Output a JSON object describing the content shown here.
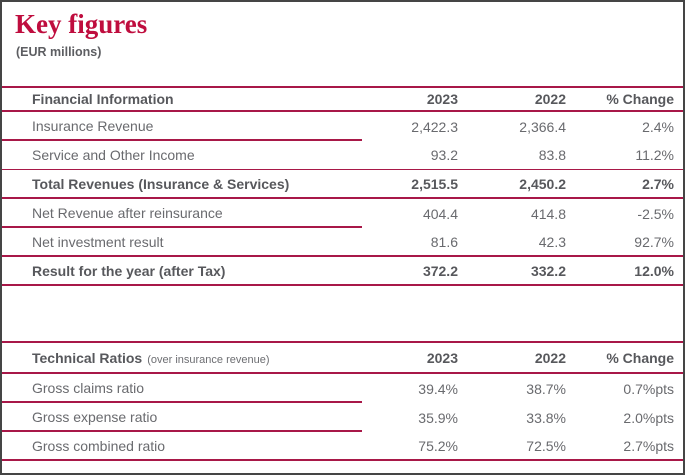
{
  "page": {
    "title": "Key figures",
    "subtitle": "(EUR millions)"
  },
  "colors": {
    "title_red": "#bf0d3e",
    "table_line_crimson": "#a81848",
    "text_gray": "#696a6e",
    "text_bold_gray": "#57585c"
  },
  "tables": [
    {
      "name": "Financial Information",
      "header": {
        "label": "Financial Information",
        "note": "",
        "col_2023": "2023",
        "col_2022": "2022",
        "col_change": "% Change"
      },
      "rows": [
        {
          "label": "Insurance Revenue",
          "v2023": "2,422.3",
          "v2022": "2,366.4",
          "change": "2.4%"
        },
        {
          "label": "Service and Other Income",
          "v2023": "93.2",
          "v2022": "83.8",
          "change": "11.2%"
        },
        {
          "label": "Total Revenues (Insurance & Services)",
          "v2023": "2,515.5",
          "v2022": "2,450.2",
          "change": "2.7%"
        },
        {
          "label": "Net Revenue after reinsurance",
          "v2023": "404.4",
          "v2022": "414.8",
          "change": "-2.5%"
        },
        {
          "label": "Net investment result",
          "v2023": "81.6",
          "v2022": "42.3",
          "change": "92.7%"
        },
        {
          "label": "Result for the year (after Tax)",
          "v2023": "372.2",
          "v2022": "332.2",
          "change": "12.0%"
        }
      ]
    },
    {
      "name": "Technical Ratios",
      "header": {
        "label": "Technical Ratios",
        "note": "(over insurance revenue)",
        "col_2023": "2023",
        "col_2022": "2022",
        "col_change": "% Change"
      },
      "rows": [
        {
          "label": "Gross claims ratio",
          "v2023": "39.4%",
          "v2022": "38.7%",
          "change": "0.7%pts"
        },
        {
          "label": "Gross expense ratio",
          "v2023": "35.9%",
          "v2022": "33.8%",
          "change": "2.0%pts"
        },
        {
          "label": "Gross combined ratio",
          "v2023": "75.2%",
          "v2022": "72.5%",
          "change": "2.7%pts"
        }
      ]
    }
  ]
}
